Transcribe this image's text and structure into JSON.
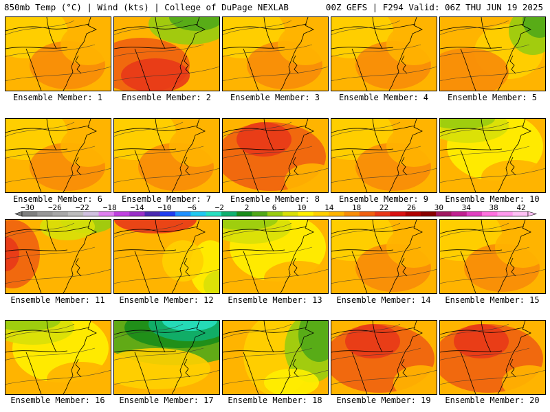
{
  "header": {
    "left": "850mb Temp (°C) | Wind (kts) | College of DuPage NEXLAB",
    "right": "00Z GEFS | F294 Valid: 06Z THU JUN 19 2025"
  },
  "colorbar": {
    "ticks": [
      "-30",
      "-26",
      "-22",
      "-18",
      "-14",
      "-10",
      "-6",
      "-2",
      "2",
      "6",
      "10",
      "14",
      "18",
      "22",
      "26",
      "30",
      "34",
      "38",
      "42"
    ],
    "colors": [
      "#7f7f7f",
      "#989898",
      "#a8a8a8",
      "#bdbdbd",
      "#d0c0e0",
      "#e080f0",
      "#c040e0",
      "#9a30c8",
      "#4a2ab0",
      "#1e3cf0",
      "#1e90ff",
      "#20c8f0",
      "#28e0c0",
      "#10b070",
      "#1a8c1a",
      "#50a818",
      "#98cc10",
      "#d8e008",
      "#fff000",
      "#ffd000",
      "#ffb400",
      "#f88c08",
      "#f06010",
      "#e83818",
      "#d81010",
      "#b00000",
      "#880000",
      "#a01860",
      "#c02090",
      "#e040c0",
      "#ff70e0",
      "#ff99ee",
      "#ffc0f5"
    ]
  },
  "panels": [
    {
      "label": "Ensemble Member: 1",
      "scheme": "warm"
    },
    {
      "label": "Ensemble Member: 2",
      "scheme": "hot-north-green"
    },
    {
      "label": "Ensemble Member: 3",
      "scheme": "warm"
    },
    {
      "label": "Ensemble Member: 4",
      "scheme": "warm"
    },
    {
      "label": "Ensemble Member: 5",
      "scheme": "northeast-green"
    },
    {
      "label": "Ensemble Member: 6",
      "scheme": "warm"
    },
    {
      "label": "Ensemble Member: 7",
      "scheme": "warm"
    },
    {
      "label": "Ensemble Member: 8",
      "scheme": "hot"
    },
    {
      "label": "Ensemble Member: 9",
      "scheme": "warm"
    },
    {
      "label": "Ensemble Member: 10",
      "scheme": "cool"
    },
    {
      "label": "Ensemble Member: 11",
      "scheme": "west-hot"
    },
    {
      "label": "Ensemble Member: 12",
      "scheme": "north-hot"
    },
    {
      "label": "Ensemble Member: 13",
      "scheme": "cool"
    },
    {
      "label": "Ensemble Member: 14",
      "scheme": "warm"
    },
    {
      "label": "Ensemble Member: 15",
      "scheme": "warm"
    },
    {
      "label": "Ensemble Member: 16",
      "scheme": "cool"
    },
    {
      "label": "Ensemble Member: 17",
      "scheme": "cold-north"
    },
    {
      "label": "Ensemble Member: 18",
      "scheme": "east-green"
    },
    {
      "label": "Ensemble Member: 19",
      "scheme": "hot"
    },
    {
      "label": "Ensemble Member: 20",
      "scheme": "hot"
    }
  ]
}
